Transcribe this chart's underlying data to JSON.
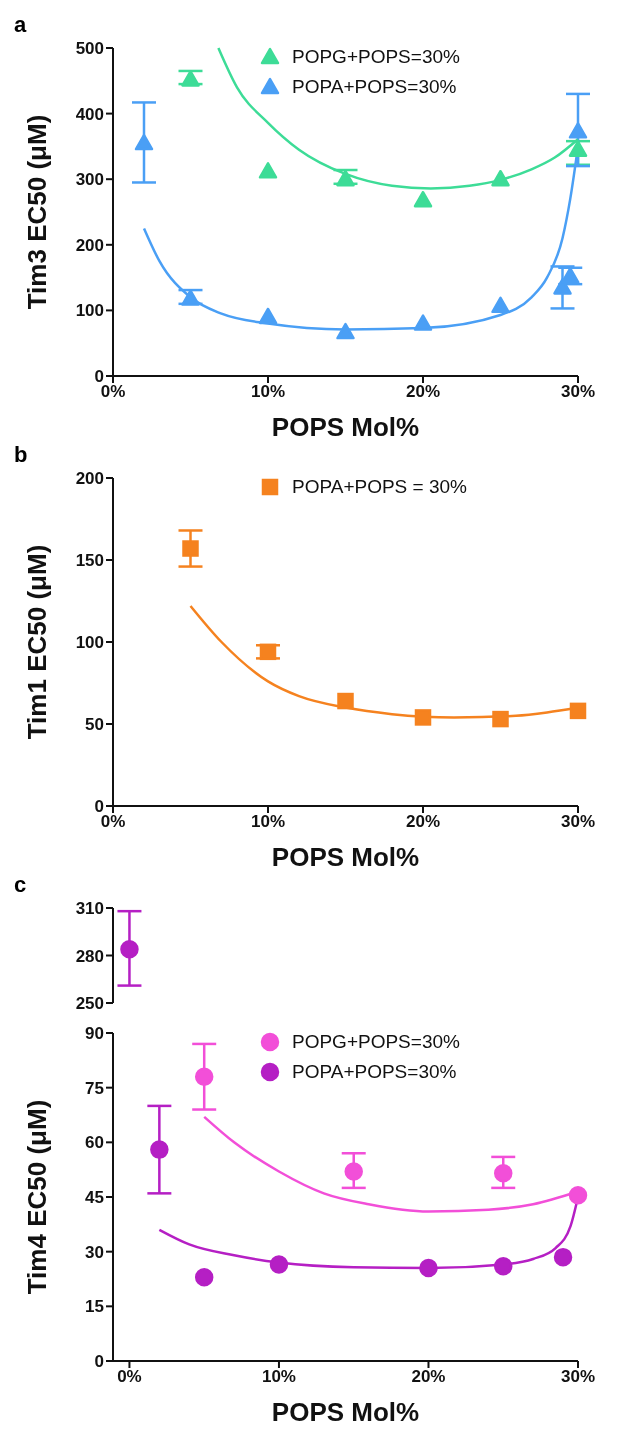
{
  "chart_data": [
    {
      "type": "scatter",
      "title": "a",
      "xlabel": "POPS Mol%",
      "ylabel": "Tim3 EC50 (μM)",
      "xlim": [
        0,
        30
      ],
      "xticks": [
        {
          "value": 0,
          "label": "0%"
        },
        {
          "value": 10,
          "label": "10%"
        },
        {
          "value": 20,
          "label": "20%"
        },
        {
          "value": 30,
          "label": "30%"
        }
      ],
      "ylim": [
        0,
        500
      ],
      "yticks": [
        0,
        100,
        200,
        300,
        400,
        500
      ],
      "legend": "top right",
      "series": [
        {
          "name": "POPG+POPS=30%",
          "color": "#3ddc97",
          "marker": "triangle",
          "x": [
            5,
            10,
            15,
            20,
            25,
            30
          ],
          "values": [
            452,
            312,
            300,
            268,
            300,
            345
          ],
          "errors": [
            [
              445,
              465
            ],
            null,
            [
              293,
              314
            ],
            null,
            null,
            [
              322,
              358
            ]
          ]
        },
        {
          "name": "POPA+POPS=30%",
          "color": "#4a9ff5",
          "marker": "triangle",
          "x": [
            2,
            5,
            10,
            15,
            20,
            25,
            29,
            29.5,
            30
          ],
          "values": [
            355,
            118,
            90,
            67,
            80,
            107,
            135,
            152,
            373
          ],
          "errors": [
            [
              295,
              417
            ],
            [
              110,
              131
            ],
            null,
            null,
            null,
            null,
            [
              103,
              167
            ],
            [
              140,
              165
            ],
            [
              320,
              430
            ]
          ]
        },
        {
          "type": "line",
          "color": "#3ddc97",
          "marker": "none",
          "x": [
            6.8,
            8,
            10,
            12,
            15,
            18,
            20.5,
            23,
            25,
            27,
            28.5,
            30
          ],
          "values": [
            500,
            440,
            386,
            345,
            308,
            290,
            286,
            290,
            299,
            315,
            333,
            361
          ]
        },
        {
          "type": "line",
          "color": "#4a9ff5",
          "marker": "none",
          "x": [
            2,
            3,
            5,
            7,
            10,
            15,
            20,
            25,
            27,
            28,
            29,
            29.5,
            30
          ],
          "values": [
            225,
            175,
            120,
            95,
            80,
            71,
            73,
            93,
            120,
            150,
            210,
            270,
            350
          ]
        }
      ]
    },
    {
      "type": "scatter",
      "title": "b",
      "xlabel": "POPS Mol%",
      "ylabel": "Tim1 EC50 (μM)",
      "xlim": [
        0,
        30
      ],
      "xticks": [
        {
          "value": 0,
          "label": "0%"
        },
        {
          "value": 10,
          "label": "10%"
        },
        {
          "value": 20,
          "label": "20%"
        },
        {
          "value": 30,
          "label": "30%"
        }
      ],
      "ylim": [
        0,
        200
      ],
      "yticks": [
        0,
        50,
        100,
        150,
        200
      ],
      "legend": "top right",
      "series": [
        {
          "name": "POPA+POPS = 30%",
          "color": "#f5821f",
          "marker": "square",
          "x": [
            5,
            10,
            15,
            20,
            25,
            30
          ],
          "values": [
            157,
            94,
            64,
            54,
            53,
            58
          ],
          "errors": [
            [
              146,
              168
            ],
            [
              90,
              98
            ],
            null,
            null,
            null,
            null
          ]
        },
        {
          "type": "line",
          "color": "#f5821f",
          "marker": "none",
          "x": [
            5,
            7,
            10,
            12,
            15,
            18,
            22,
            26,
            28,
            30
          ],
          "values": [
            122,
            100,
            76,
            67,
            60,
            56,
            54,
            55,
            57,
            60
          ]
        }
      ]
    },
    {
      "type": "scatter",
      "title": "c",
      "tick_labels": "y",
      "xlim": [
        -1.1,
        30
      ],
      "ylim": [
        250,
        310
      ],
      "yticks": [
        250,
        280,
        310
      ],
      "series": [
        {
          "color": "#b51fc4",
          "marker": "circle",
          "x": [
            0
          ],
          "values": [
            284
          ],
          "errors": [
            [
              261,
              308
            ]
          ]
        }
      ]
    },
    {
      "type": "scatter",
      "xlabel": "POPS Mol%",
      "ylabel": "Tim4 EC50 (μM)",
      "xlim": [
        -1.1,
        30
      ],
      "xticks": [
        {
          "value": 0,
          "label": "0%"
        },
        {
          "value": 10,
          "label": "10%"
        },
        {
          "value": 20,
          "label": "20%"
        },
        {
          "value": 30,
          "label": "30%"
        }
      ],
      "ylim": [
        0,
        90
      ],
      "yticks": [
        0,
        15,
        30,
        45,
        60,
        75,
        90
      ],
      "legend": "top right",
      "series": [
        {
          "name": "POPG+POPS=30%",
          "color": "#f24fd8",
          "marker": "circle",
          "x": [
            5,
            15,
            25,
            30
          ],
          "values": [
            78,
            52,
            51.5,
            45.5
          ],
          "errors": [
            [
              69,
              87
            ],
            [
              47.5,
              57
            ],
            [
              47.5,
              56
            ],
            null
          ]
        },
        {
          "name": "POPA+POPS=30%",
          "color": "#b51fc4",
          "marker": "circle",
          "x": [
            2,
            5,
            10,
            20,
            25,
            29
          ],
          "values": [
            58,
            23,
            26.5,
            25.5,
            26,
            28.5
          ],
          "errors": [
            [
              46,
              70
            ],
            null,
            null,
            null,
            null,
            null
          ]
        },
        {
          "type": "line",
          "color": "#f24fd8",
          "marker": "none",
          "x": [
            5,
            7,
            10,
            13,
            16,
            20,
            24,
            27,
            30
          ],
          "values": [
            67,
            60,
            52,
            46,
            43,
            41,
            41.5,
            43,
            46.5
          ]
        },
        {
          "type": "line",
          "color": "#b51fc4",
          "marker": "none",
          "x": [
            2,
            4,
            7,
            10,
            15,
            20,
            25,
            27,
            28.5,
            29.5,
            30
          ],
          "values": [
            36,
            32,
            29,
            27,
            25.7,
            25.5,
            26.5,
            28,
            31,
            37,
            45
          ]
        }
      ]
    }
  ]
}
